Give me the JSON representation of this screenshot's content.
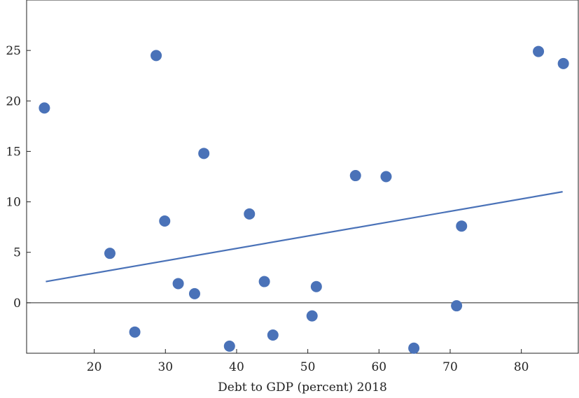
{
  "chart_data": {
    "type": "scatter",
    "title": "",
    "xlabel": "Debt to GDP (percent) 2018",
    "ylabel": "",
    "xlim": [
      10.5,
      88
    ],
    "ylim": [
      -5,
      30
    ],
    "x_ticks": [
      20,
      30,
      40,
      50,
      60,
      70,
      80
    ],
    "y_ticks": [
      0,
      5,
      10,
      15,
      20,
      25
    ],
    "grid": false,
    "zero_line": true,
    "point_color": "#4a72b8",
    "fit_line_color": "#4a72b8",
    "points": [
      {
        "x": 13.0,
        "y": 19.3
      },
      {
        "x": 22.2,
        "y": 4.9
      },
      {
        "x": 25.7,
        "y": -2.9
      },
      {
        "x": 28.7,
        "y": 24.5
      },
      {
        "x": 29.9,
        "y": 8.1
      },
      {
        "x": 31.8,
        "y": 1.9
      },
      {
        "x": 34.1,
        "y": 0.9
      },
      {
        "x": 35.4,
        "y": 14.8
      },
      {
        "x": 39.0,
        "y": -4.3
      },
      {
        "x": 41.8,
        "y": 8.8
      },
      {
        "x": 43.9,
        "y": 2.1
      },
      {
        "x": 45.1,
        "y": -3.2
      },
      {
        "x": 50.6,
        "y": -1.3
      },
      {
        "x": 51.2,
        "y": 1.6
      },
      {
        "x": 56.7,
        "y": 12.6
      },
      {
        "x": 61.0,
        "y": 12.5
      },
      {
        "x": 64.9,
        "y": -4.5
      },
      {
        "x": 70.9,
        "y": -0.3
      },
      {
        "x": 71.6,
        "y": 7.6
      },
      {
        "x": 82.4,
        "y": 24.9
      },
      {
        "x": 85.9,
        "y": 23.7
      }
    ],
    "fit_line": {
      "x": [
        13.2,
        85.8
      ],
      "y": [
        2.1,
        11.0
      ]
    }
  }
}
